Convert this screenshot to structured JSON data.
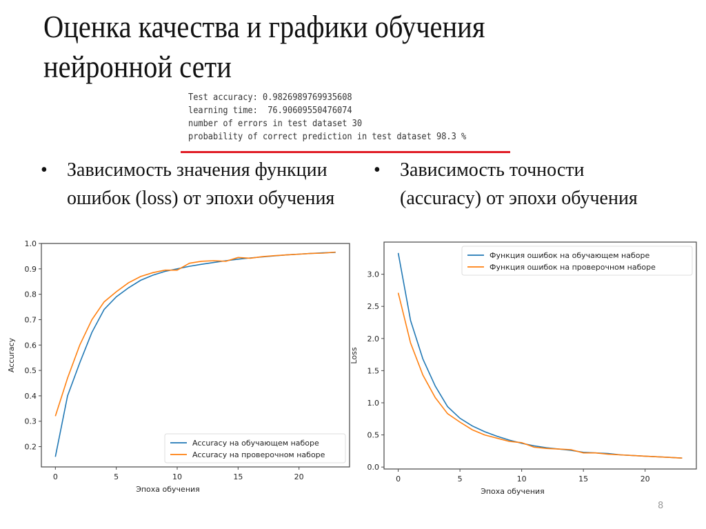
{
  "slide": {
    "title": "Оценка качества и графики обучения нейронной сети",
    "console_output": [
      "Test accuracy: 0.9826989769935608",
      "learning time:  76.90609550476074",
      "number of errors in test dataset 30",
      "probability of correct prediction in test dataset 98.3 %"
    ],
    "bullets": [
      {
        "marker": "•",
        "text": "Зависимость значения функции ошибок (loss) от эпохи обучения"
      },
      {
        "marker": "•",
        "text": "Зависимость точности (accuracy) от эпохи обучения"
      }
    ],
    "page_number": "8"
  },
  "colors": {
    "train": "#1f77b4",
    "validation": "#ff7f0e",
    "underline": "#e01b24"
  },
  "chart_data": [
    {
      "type": "line",
      "title": "",
      "xlabel": "Эпоха обучения",
      "ylabel": "Accuracy",
      "xlim": [
        -1.15,
        24.15
      ],
      "ylim": [
        0.12,
        1.0
      ],
      "xticks": [
        0,
        5,
        10,
        15,
        20
      ],
      "yticks": [
        0.2,
        0.3,
        0.4,
        0.5,
        0.6,
        0.7,
        0.8,
        0.9,
        1.0
      ],
      "ytick_labels": [
        "0.2",
        "0.3",
        "0.4",
        "0.5",
        "0.6",
        "0.7",
        "0.8",
        "0.9",
        "1.0"
      ],
      "grid": false,
      "legend_position": "lower right",
      "x": [
        0,
        1,
        2,
        3,
        4,
        5,
        6,
        7,
        8,
        9,
        10,
        11,
        12,
        13,
        14,
        15,
        16,
        17,
        18,
        19,
        20,
        21,
        22,
        23
      ],
      "series": [
        {
          "name": "Accuracy на обучающем наборе",
          "color": "#1f77b4",
          "values": [
            0.16,
            0.4,
            0.53,
            0.65,
            0.74,
            0.79,
            0.825,
            0.855,
            0.875,
            0.89,
            0.9,
            0.91,
            0.918,
            0.925,
            0.932,
            0.938,
            0.943,
            0.947,
            0.951,
            0.955,
            0.958,
            0.961,
            0.963,
            0.965
          ]
        },
        {
          "name": "Accuracy на проверочном наборе",
          "color": "#ff7f0e",
          "values": [
            0.32,
            0.47,
            0.6,
            0.7,
            0.77,
            0.81,
            0.845,
            0.87,
            0.885,
            0.895,
            0.895,
            0.922,
            0.93,
            0.932,
            0.93,
            0.945,
            0.942,
            0.948,
            0.952,
            0.955,
            0.958,
            0.961,
            0.962,
            0.966
          ]
        }
      ]
    },
    {
      "type": "line",
      "title": "",
      "xlabel": "Эпоха обучения",
      "ylabel": "Loss",
      "xlim": [
        -1.15,
        24.15
      ],
      "ylim": [
        -0.03,
        3.5
      ],
      "xticks": [
        0,
        5,
        10,
        15,
        20
      ],
      "yticks": [
        0.0,
        0.5,
        1.0,
        1.5,
        2.0,
        2.5,
        3.0
      ],
      "ytick_labels": [
        "0.0",
        "0.5",
        "1.0",
        "1.5",
        "2.0",
        "2.5",
        "3.0"
      ],
      "grid": false,
      "legend_position": "upper right",
      "x": [
        0,
        1,
        2,
        3,
        4,
        5,
        6,
        7,
        8,
        9,
        10,
        11,
        12,
        13,
        14,
        15,
        16,
        17,
        18,
        19,
        20,
        21,
        22,
        23
      ],
      "series": [
        {
          "name": "Функция ошибок на обучающем наборе",
          "color": "#1f77b4",
          "values": [
            3.33,
            2.28,
            1.68,
            1.26,
            0.94,
            0.76,
            0.64,
            0.55,
            0.48,
            0.42,
            0.37,
            0.33,
            0.3,
            0.28,
            0.26,
            0.23,
            0.22,
            0.21,
            0.19,
            0.18,
            0.17,
            0.16,
            0.15,
            0.14
          ]
        },
        {
          "name": "Функция ошибок на проверочном наборе",
          "color": "#ff7f0e",
          "values": [
            2.71,
            1.93,
            1.43,
            1.08,
            0.83,
            0.7,
            0.58,
            0.5,
            0.45,
            0.4,
            0.38,
            0.31,
            0.29,
            0.28,
            0.27,
            0.22,
            0.22,
            0.2,
            0.19,
            0.18,
            0.17,
            0.16,
            0.15,
            0.14
          ]
        }
      ]
    }
  ]
}
